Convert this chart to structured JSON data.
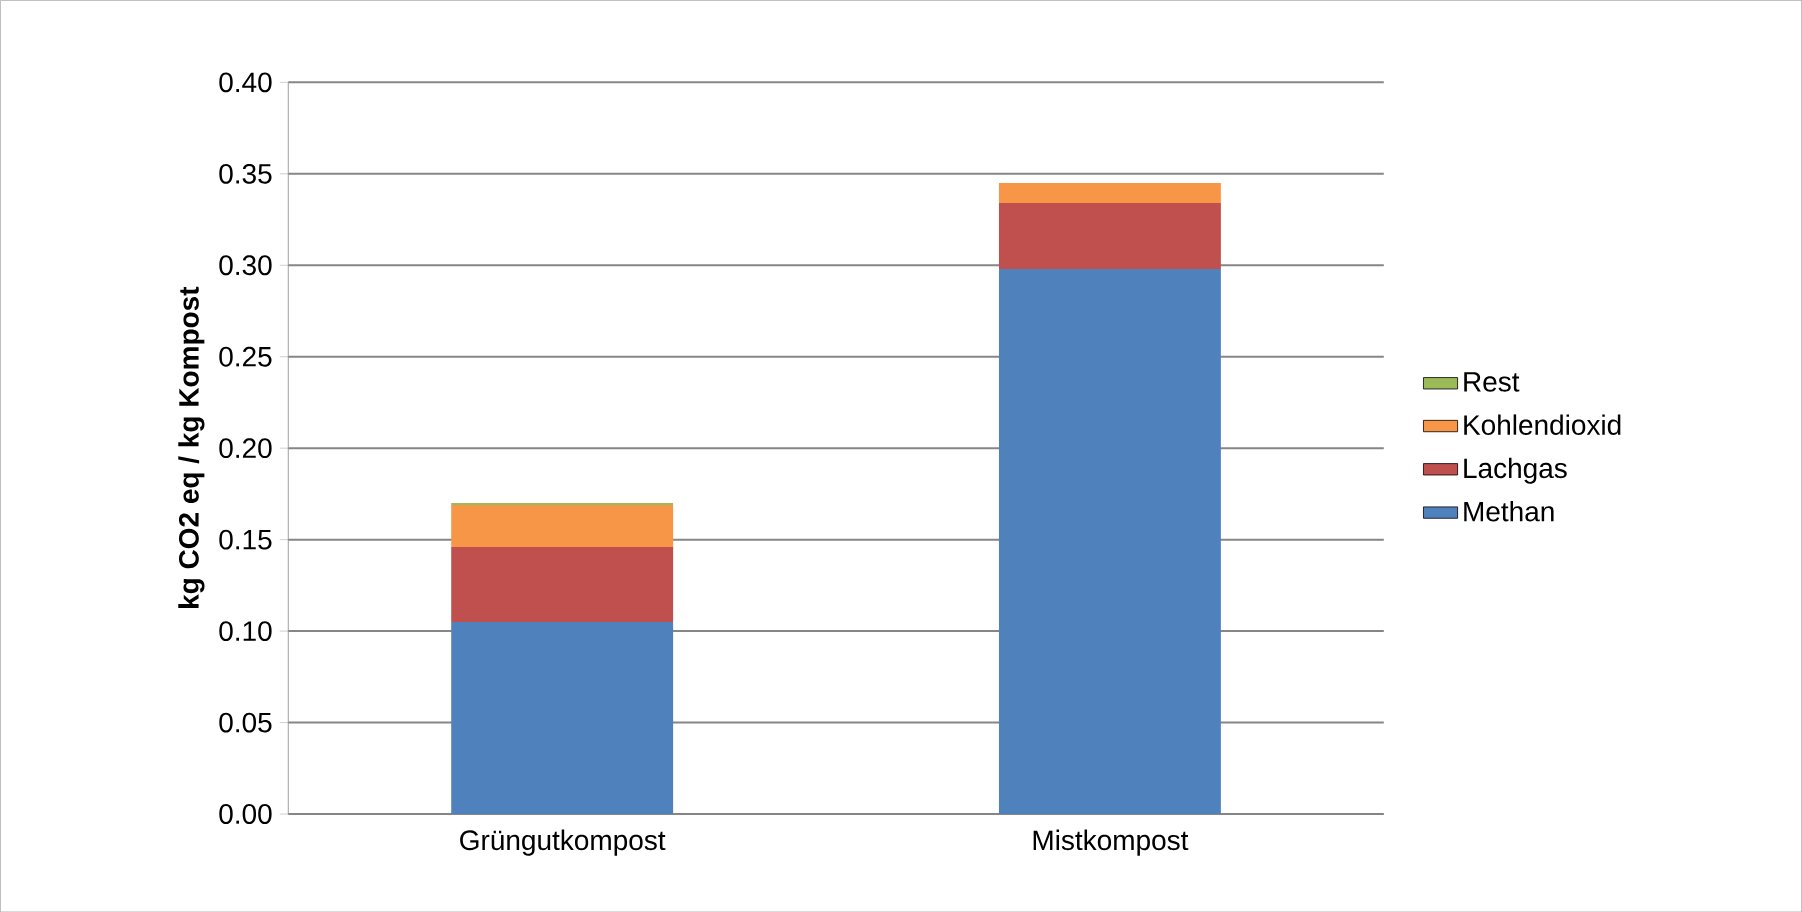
{
  "chart_data": {
    "type": "bar",
    "stacked": true,
    "ylabel": "kg CO2 eq / kg Kompost",
    "categories": [
      "Grüngutkompost",
      "Mistkompost"
    ],
    "series": [
      {
        "name": "Methan",
        "color": "#4f81bd",
        "values": [
          0.105,
          0.298
        ]
      },
      {
        "name": "Lachgas",
        "color": "#c0504d",
        "values": [
          0.041,
          0.036
        ]
      },
      {
        "name": "Kohlendioxid",
        "color": "#f79646",
        "values": [
          0.023,
          0.011
        ]
      },
      {
        "name": "Rest",
        "color": "#9bbb59",
        "values": [
          0.001,
          0.0
        ]
      }
    ],
    "ylim": [
      0,
      0.4
    ],
    "yticks": [
      {
        "value": 0,
        "label": "0.00"
      },
      {
        "value": 0.05,
        "label": "0.05"
      },
      {
        "value": 0.1,
        "label": "0.10"
      },
      {
        "value": 0.15,
        "label": "0.15"
      },
      {
        "value": 0.2,
        "label": "0.20"
      },
      {
        "value": 0.25,
        "label": "0.25"
      },
      {
        "value": 0.3,
        "label": "0.30"
      },
      {
        "value": 0.35,
        "label": "0.35"
      },
      {
        "value": 0.4,
        "label": "0.40"
      }
    ],
    "grid": "y",
    "legend": "right"
  }
}
